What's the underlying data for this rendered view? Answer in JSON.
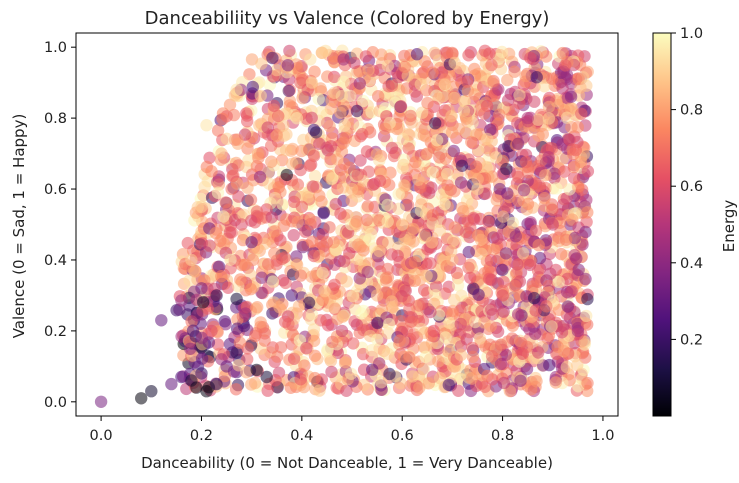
{
  "chart_data": {
    "type": "scatter",
    "title": "Danceabiliity vs Valence (Colored by Energy)",
    "xlabel": "Danceability (0 = Not Danceable, 1 = Very Danceable)",
    "ylabel": "Valence (0 = Sad, 1 = Happy)",
    "xlim": [
      -0.05,
      1.03
    ],
    "ylim": [
      -0.04,
      1.04
    ],
    "xticks": [
      0.0,
      0.2,
      0.4,
      0.6,
      0.8,
      1.0
    ],
    "xtick_labels": [
      "0.0",
      "0.2",
      "0.4",
      "0.6",
      "0.8",
      "1.0"
    ],
    "yticks": [
      0.0,
      0.2,
      0.4,
      0.6,
      0.8,
      1.0
    ],
    "ytick_labels": [
      "0.0",
      "0.2",
      "0.4",
      "0.6",
      "0.8",
      "1.0"
    ],
    "grid": false,
    "colorbar": {
      "label": "Energy",
      "range": [
        0.0,
        1.0
      ],
      "colormap": "magma",
      "ticks": [
        0.2,
        0.4,
        0.6,
        0.8,
        1.0
      ],
      "tick_labels": [
        "0.2",
        "0.4",
        "0.6",
        "0.8",
        "1.0"
      ]
    },
    "points": [
      [
        0.0,
        0.0,
        0.35
      ],
      [
        0.08,
        0.01,
        0.02
      ],
      [
        0.1,
        0.03,
        0.08
      ],
      [
        0.12,
        0.23,
        0.3
      ],
      [
        0.14,
        0.05,
        0.3
      ],
      [
        0.16,
        0.07,
        0.25
      ],
      [
        0.18,
        0.06,
        0.1
      ],
      [
        0.19,
        0.04,
        0.05
      ],
      [
        0.2,
        0.08,
        0.2
      ],
      [
        0.21,
        0.03,
        0.03
      ],
      [
        0.23,
        0.05,
        0.15
      ],
      [
        0.24,
        0.12,
        0.45
      ],
      [
        0.25,
        0.1,
        0.3
      ],
      [
        0.27,
        0.29,
        0.1
      ],
      [
        0.31,
        0.09,
        0.05
      ],
      [
        0.33,
        0.07,
        0.1
      ],
      [
        0.37,
        0.64,
        0.05
      ],
      [
        0.51,
        0.82,
        0.2
      ],
      [
        0.2,
        0.32,
        0.35
      ],
      [
        0.22,
        0.2,
        0.6
      ],
      [
        0.18,
        0.4,
        0.9
      ],
      [
        0.2,
        0.55,
        0.9
      ],
      [
        0.22,
        0.65,
        0.75
      ],
      [
        0.21,
        0.78,
        0.95
      ],
      [
        0.24,
        0.7,
        0.85
      ],
      [
        0.26,
        0.6,
        0.7
      ],
      [
        0.27,
        0.88,
        0.95
      ],
      [
        0.28,
        0.5,
        0.6
      ],
      [
        0.3,
        0.45,
        0.3
      ],
      [
        0.32,
        0.35,
        0.4
      ],
      [
        0.34,
        0.52,
        0.55
      ],
      [
        0.35,
        0.75,
        0.8
      ],
      [
        0.38,
        0.3,
        0.25
      ],
      [
        0.4,
        0.55,
        0.65
      ],
      [
        0.42,
        0.9,
        0.9
      ],
      [
        0.45,
        0.45,
        0.7
      ],
      [
        0.48,
        0.2,
        0.55
      ],
      [
        0.5,
        0.6,
        0.85
      ],
      [
        0.55,
        0.3,
        0.85
      ],
      [
        0.6,
        0.5,
        0.9
      ],
      [
        0.65,
        0.7,
        0.8
      ],
      [
        0.7,
        0.4,
        0.85
      ],
      [
        0.75,
        0.6,
        0.9
      ],
      [
        0.8,
        0.3,
        0.6
      ],
      [
        0.85,
        0.8,
        0.5
      ],
      [
        0.9,
        0.5,
        0.55
      ],
      [
        0.95,
        0.2,
        0.45
      ],
      [
        0.97,
        0.65,
        0.6
      ]
    ],
    "density_note": "Dense cloud of points spanning danceability 0.15 to 0.97 and valence 0.03 to 0.99"
  }
}
